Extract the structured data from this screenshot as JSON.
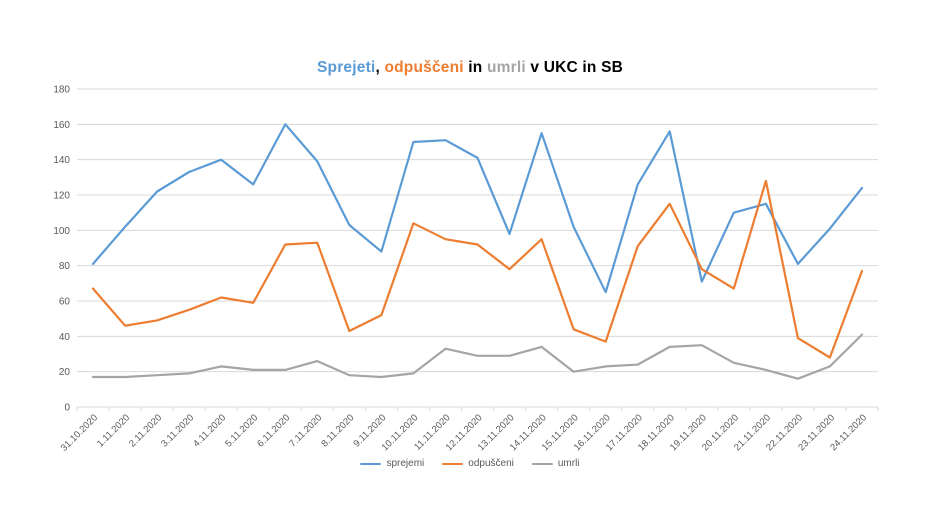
{
  "title": {
    "full": "Sprejeti, odpuščeni in umrli v UKC in SB",
    "parts": [
      {
        "text": "Sprejeti",
        "color": "#5B9BD5"
      },
      {
        "text": ", ",
        "color": "#000000"
      },
      {
        "text": "odpuščeni",
        "color": "#ED7D31"
      },
      {
        "text": " in ",
        "color": "#000000"
      },
      {
        "text": "umrli",
        "color": "#A5A5A5"
      },
      {
        "text": " v UKC in SB",
        "color": "#000000"
      }
    ]
  },
  "legend": {
    "items": [
      {
        "label": "sprejemi",
        "color": "#5B9BD5"
      },
      {
        "label": "odpuščeni",
        "color": "#ED7D31"
      },
      {
        "label": "umrli",
        "color": "#A5A5A5"
      }
    ]
  },
  "colors": {
    "gridline": "#D9D9D9",
    "axis_text": "#595959",
    "background": "#FFFFFF"
  },
  "chart_data": {
    "type": "line",
    "title": "Sprejeti, odpuščeni in umrli v UKC in SB",
    "categories": [
      "31.10.2020",
      "1.11.2020",
      "2.11.2020",
      "3.11.2020",
      "4.11.2020",
      "5.11.2020",
      "6.11.2020",
      "7.11.2020",
      "8.11.2020",
      "9.11.2020",
      "10.11.2020",
      "11.11.2020",
      "12.11.2020",
      "13.11.2020",
      "14.11.2020",
      "15.11.2020",
      "16.11.2020",
      "17.11.2020",
      "18.11.2020",
      "19.11.2020",
      "20.11.2020",
      "21.11.2020",
      "22.11.2020",
      "23.11.2020",
      "24.11.2020"
    ],
    "series": [
      {
        "name": "sprejemi",
        "color": "#5B9BD5",
        "values": [
          81,
          102,
          122,
          133,
          140,
          126,
          160,
          139,
          103,
          88,
          150,
          151,
          141,
          98,
          155,
          102,
          65,
          126,
          156,
          71,
          110,
          115,
          81,
          101,
          124
        ]
      },
      {
        "name": "odpuščeni",
        "color": "#ED7D31",
        "values": [
          67,
          46,
          49,
          55,
          62,
          59,
          92,
          93,
          43,
          52,
          104,
          95,
          92,
          78,
          95,
          44,
          37,
          91,
          115,
          78,
          67,
          128,
          39,
          28,
          77
        ]
      },
      {
        "name": "umrli",
        "color": "#A5A5A5",
        "values": [
          17,
          17,
          18,
          19,
          23,
          21,
          21,
          26,
          18,
          17,
          19,
          33,
          29,
          29,
          34,
          20,
          23,
          24,
          34,
          35,
          25,
          21,
          16,
          23,
          41
        ]
      }
    ],
    "xlabel": "",
    "ylabel": "",
    "ylim": [
      0,
      180
    ],
    "ytick_interval": 20,
    "y_ticks": [
      0,
      20,
      40,
      60,
      80,
      100,
      120,
      140,
      160,
      180
    ],
    "grid": true,
    "x_label_rotation_deg": 45,
    "legend_position": "bottom"
  }
}
